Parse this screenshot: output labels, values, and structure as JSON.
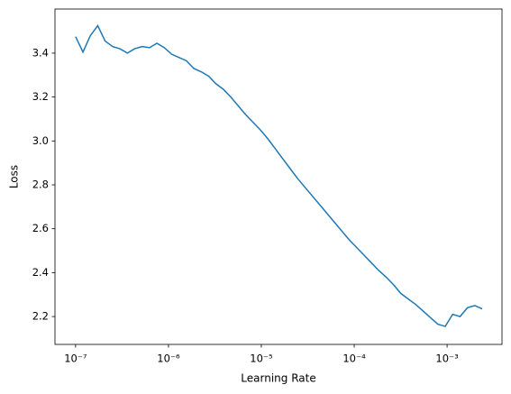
{
  "chart_data": {
    "type": "line",
    "xlabel": "Learning Rate",
    "ylabel": "Loss",
    "xscale": "log",
    "grid": false,
    "color": "#1f77b4",
    "x": [
      1e-07,
      1.201e-07,
      1.443e-07,
      1.733e-07,
      2.081e-07,
      2.5e-07,
      3.003e-07,
      3.607e-07,
      4.333e-07,
      5.204e-07,
      6.252e-07,
      7.509e-07,
      9.02e-07,
      1.083e-06,
      1.301e-06,
      1.563e-06,
      1.877e-06,
      2.255e-06,
      2.709e-06,
      3.254e-06,
      3.908e-06,
      4.694e-06,
      5.638e-06,
      6.773e-06,
      8.135e-06,
      9.772e-06,
      1.174e-05,
      1.41e-05,
      1.693e-05,
      2.034e-05,
      2.443e-05,
      2.935e-05,
      3.525e-05,
      4.234e-05,
      5.086e-05,
      6.109e-05,
      7.338e-05,
      8.814e-05,
      0.0001059,
      0.0001272,
      0.0001528,
      0.0001835,
      0.0002204,
      0.0002647,
      0.000318,
      0.0003819,
      0.0004588,
      0.000551,
      0.0006619,
      0.0007951,
      0.000955,
      0.001147,
      0.001378,
      0.001655,
      0.001988,
      0.002388
    ],
    "values": [
      3.475,
      3.405,
      3.48,
      3.525,
      3.455,
      3.43,
      3.42,
      3.4,
      3.42,
      3.43,
      3.425,
      3.445,
      3.425,
      3.395,
      3.38,
      3.365,
      3.33,
      3.315,
      3.295,
      3.26,
      3.235,
      3.2,
      3.16,
      3.12,
      3.085,
      3.05,
      3.01,
      2.965,
      2.92,
      2.875,
      2.83,
      2.79,
      2.75,
      2.71,
      2.67,
      2.63,
      2.59,
      2.55,
      2.515,
      2.48,
      2.445,
      2.41,
      2.38,
      2.345,
      2.305,
      2.28,
      2.255,
      2.225,
      2.195,
      2.165,
      2.155,
      2.21,
      2.2,
      2.24,
      2.25,
      2.235
    ],
    "xlim": [
      6e-08,
      0.0039
    ],
    "xticks": [
      {
        "value": 1e-07,
        "label": "10⁻⁷"
      },
      {
        "value": 1e-06,
        "label": "10⁻⁶"
      },
      {
        "value": 1e-05,
        "label": "10⁻⁵"
      },
      {
        "value": 0.0001,
        "label": "10⁻⁴"
      },
      {
        "value": 0.001,
        "label": "10⁻³"
      }
    ],
    "ylim": [
      2.073,
      3.601
    ],
    "yticks": [
      2.2,
      2.4,
      2.6,
      2.8,
      {
        "value": 3,
        "label": "3.0"
      },
      3.2,
      3.4
    ]
  }
}
